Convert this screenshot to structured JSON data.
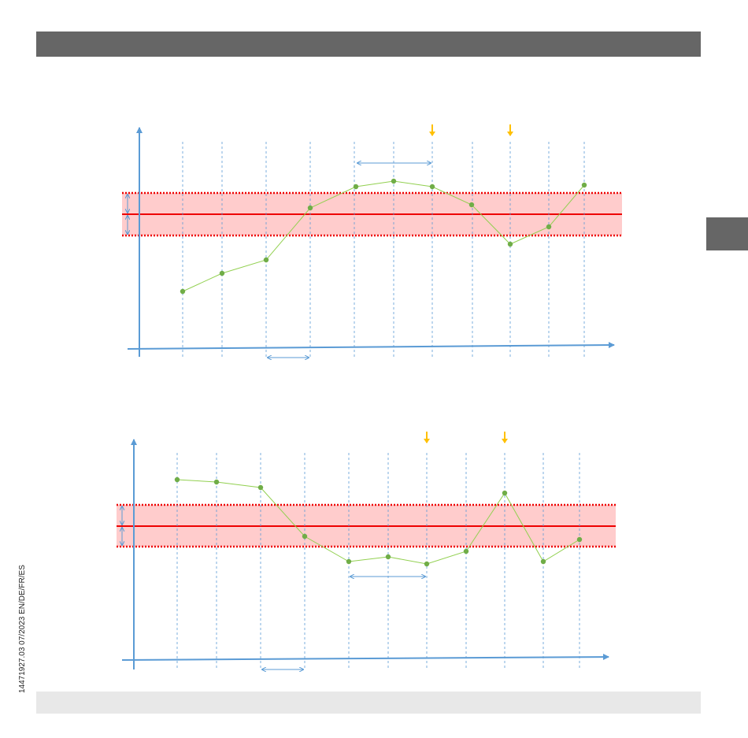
{
  "footer": {
    "doc_id": "14471927.03 07/2023 EN/DE/FR/ES"
  }
}
